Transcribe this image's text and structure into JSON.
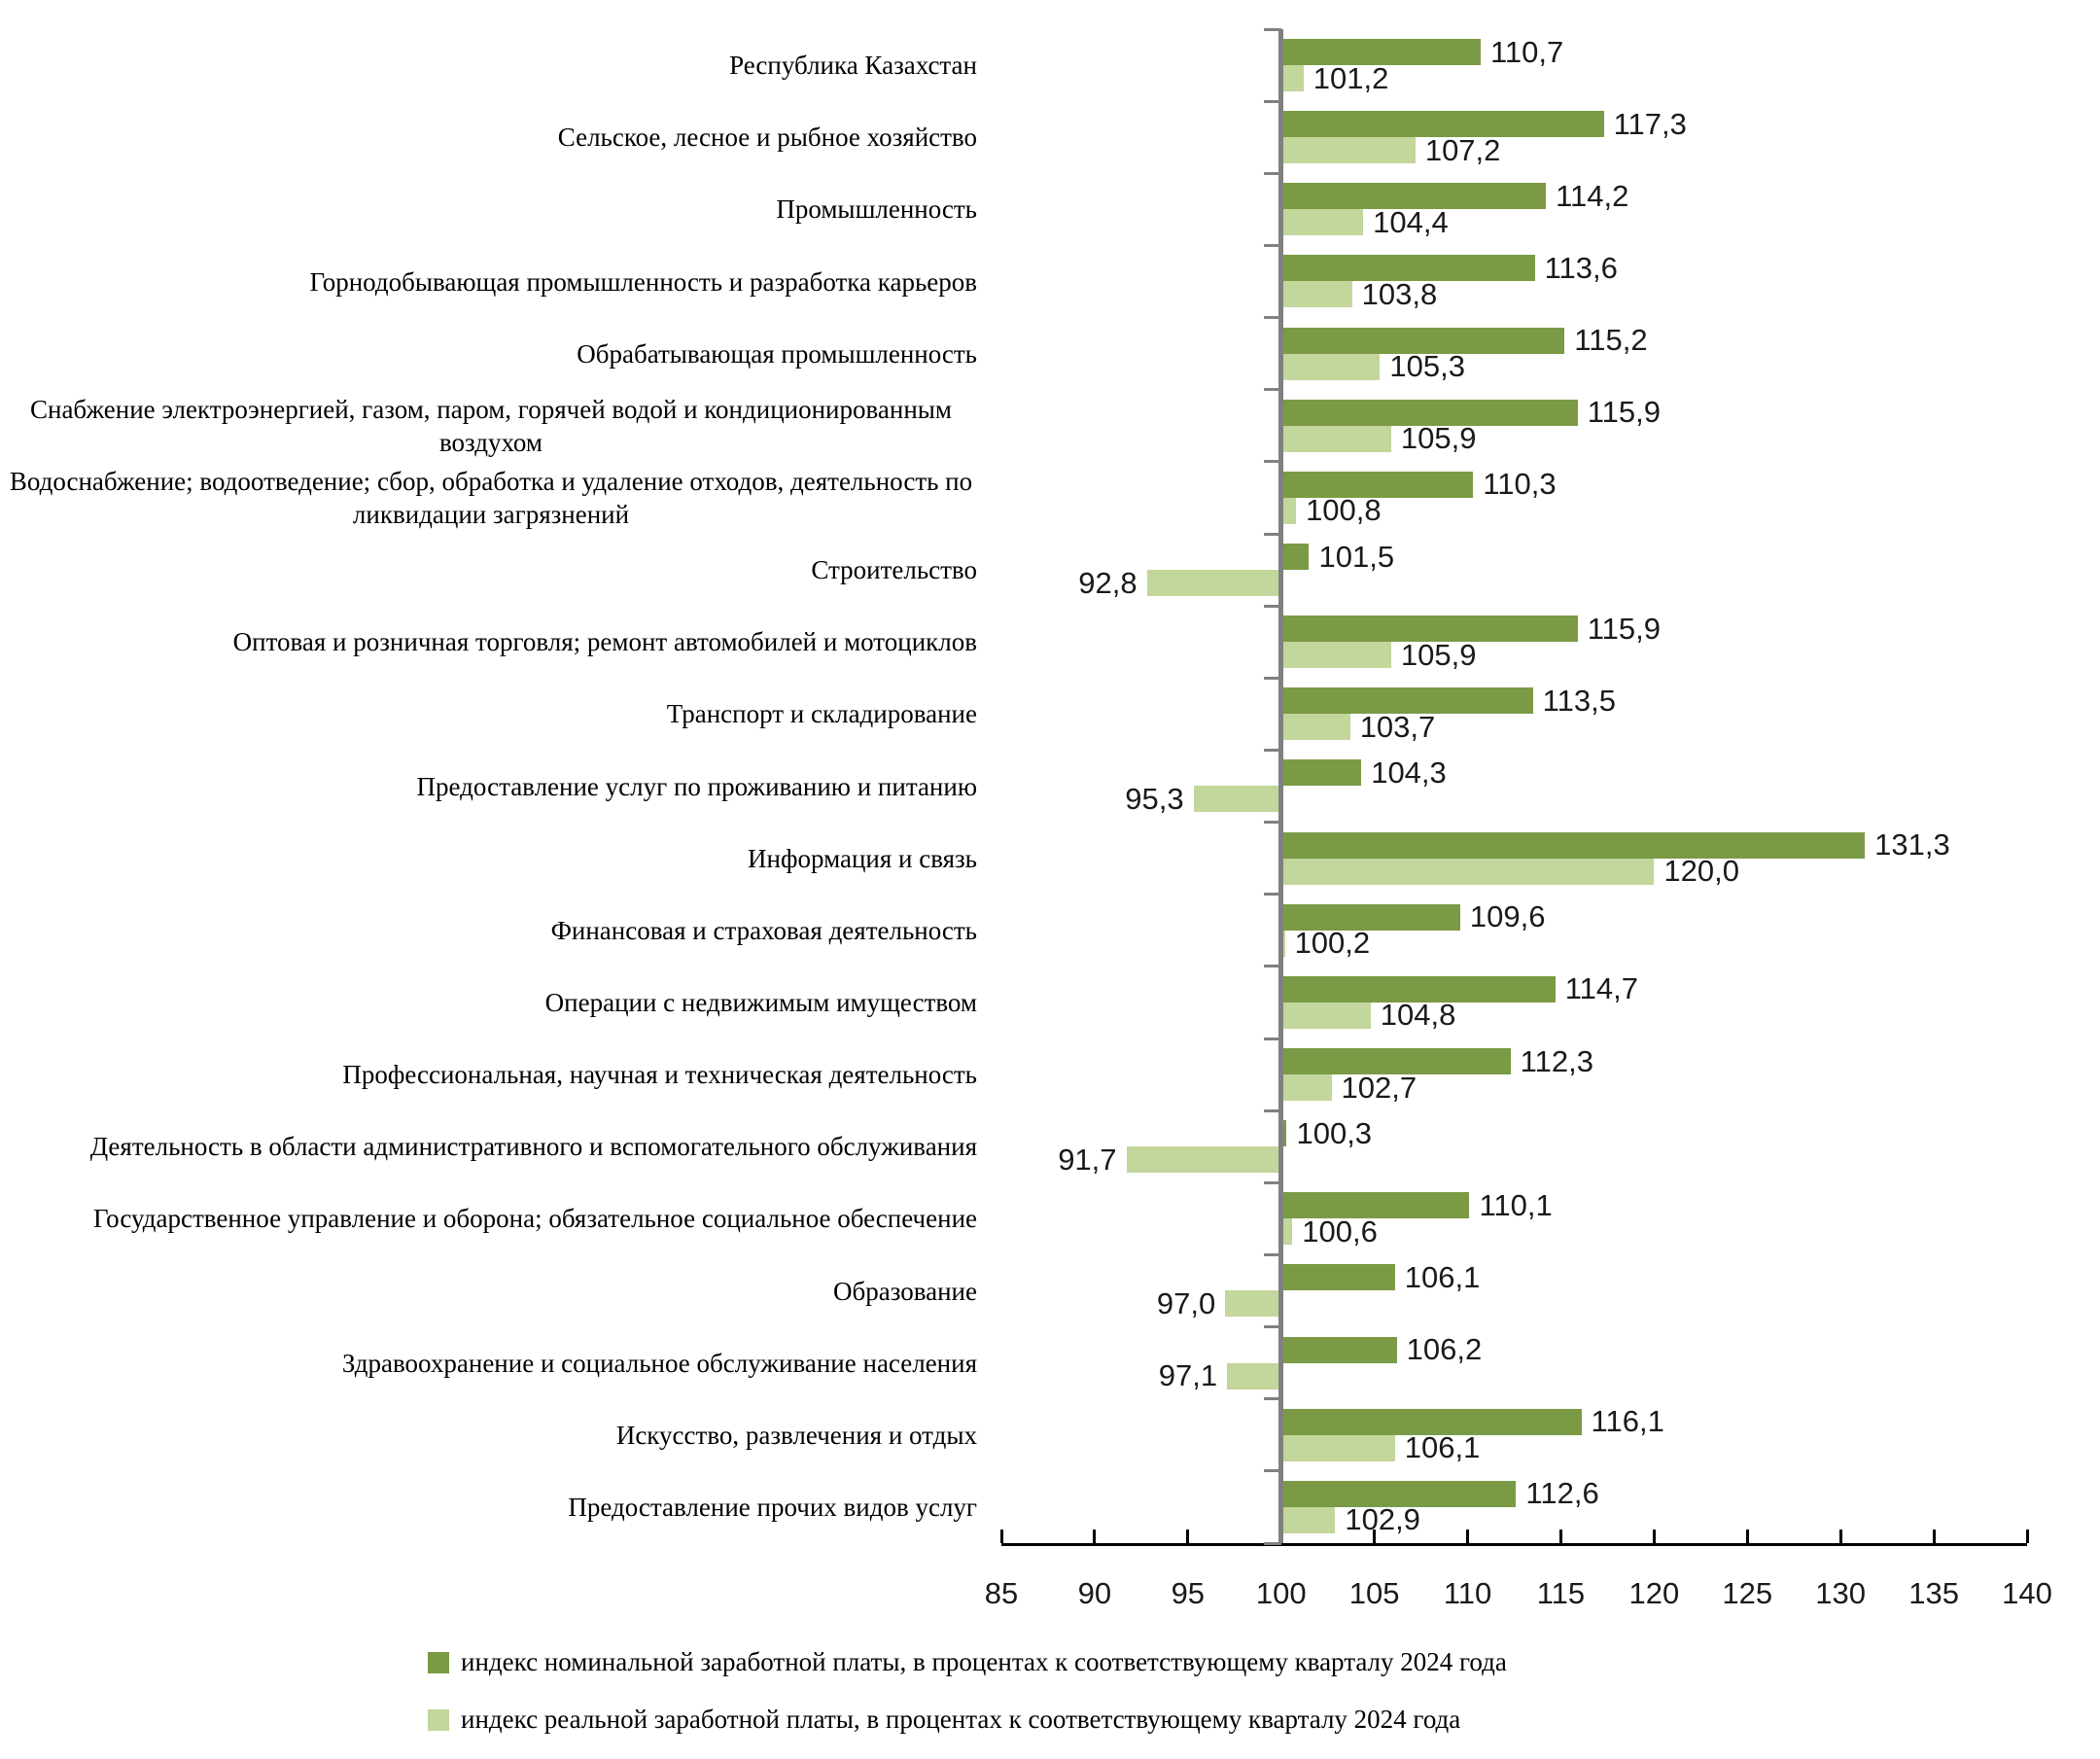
{
  "chart_data": {
    "type": "bar",
    "orientation": "horizontal",
    "grid": false,
    "legend_position": "bottom",
    "xlim": [
      85,
      140
    ],
    "xticks": [
      85,
      90,
      95,
      100,
      105,
      110,
      115,
      120,
      125,
      130,
      135,
      140
    ],
    "baseline": 100,
    "value_decimal_separator": ",",
    "axis_color": "#808080",
    "x_axis_line_color": "#000000",
    "categories": [
      "Республика Казахстан",
      "Сельское, лесное и рыбное хозяйство",
      "Промышленность",
      "Горнодобывающая промышленность и разработка карьеров",
      "Обрабатывающая промышленность",
      "Снабжение электроэнергией, газом, паром, горячей водой и кондиционированным воздухом",
      "Водоснабжение; водоотведение; сбор, обработка и удаление отходов, деятельность по ликвидации загрязнений",
      "Строительство",
      "Оптовая и розничная торговля; ремонт автомобилей и мотоциклов",
      "Транспорт и складирование",
      "Предоставление услуг по проживанию и питанию",
      "Информация и связь",
      "Финансовая и страховая деятельность",
      "Операции с недвижимым имуществом",
      "Профессиональная, научная и техническая деятельность",
      "Деятельность в области административного и вспомогательного обслуживания",
      "Государственное управление и оборона; обязательное социальное обеспечение",
      "Образование",
      "Здравоохранение и социальное обслуживание населения",
      "Искусство, развлечения и отдых",
      "Предоставление прочих видов услуг"
    ],
    "series": [
      {
        "name": "индекс номинальной заработной платы, в процентах к соответствующему кварталу 2024 года",
        "color": "#7a9a45",
        "values": [
          110.7,
          117.3,
          114.2,
          113.6,
          115.2,
          115.9,
          110.3,
          101.5,
          115.9,
          113.5,
          104.3,
          131.3,
          109.6,
          114.7,
          112.3,
          100.3,
          110.1,
          106.1,
          106.2,
          116.1,
          112.6
        ]
      },
      {
        "name": "индекс реальной заработной платы, в процентах к соответствующему кварталу 2024 года",
        "color": "#c3d69b",
        "values": [
          101.2,
          107.2,
          104.4,
          103.8,
          105.3,
          105.9,
          100.8,
          92.8,
          105.9,
          103.7,
          95.3,
          120.0,
          100.2,
          104.8,
          102.7,
          91.7,
          100.6,
          97.0,
          97.1,
          106.1,
          102.9
        ]
      }
    ]
  }
}
